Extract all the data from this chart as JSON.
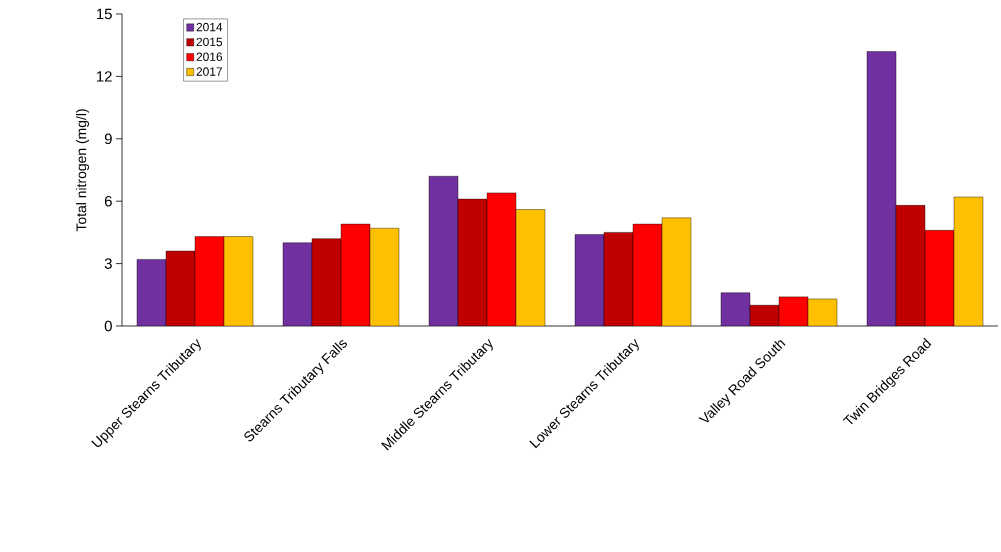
{
  "chart_data": {
    "type": "bar",
    "ylabel": "Total nitrogen (mg/l)",
    "categories": [
      "Upper Stearns Tributary",
      "Stearns Tributary Falls",
      "Middle Stearns Tributary",
      "Lower Stearns Tributary",
      "Valley Road South",
      "Twin Bridges Road"
    ],
    "series": [
      {
        "name": "2014",
        "color": "#7030a0",
        "values": [
          3.2,
          4.0,
          7.2,
          4.4,
          1.6,
          13.2
        ]
      },
      {
        "name": "2015",
        "color": "#c00000",
        "values": [
          3.6,
          4.2,
          6.1,
          4.5,
          1.0,
          5.8
        ]
      },
      {
        "name": "2016",
        "color": "#ff0000",
        "values": [
          4.3,
          4.9,
          6.4,
          4.9,
          1.4,
          4.6
        ]
      },
      {
        "name": "2017",
        "color": "#ffc000",
        "values": [
          4.3,
          4.7,
          5.6,
          5.2,
          1.3,
          6.2
        ]
      }
    ],
    "ylim": [
      0,
      15
    ],
    "yticks": [
      0,
      3,
      6,
      9,
      12,
      15
    ],
    "grid": false,
    "legend": "top left"
  }
}
